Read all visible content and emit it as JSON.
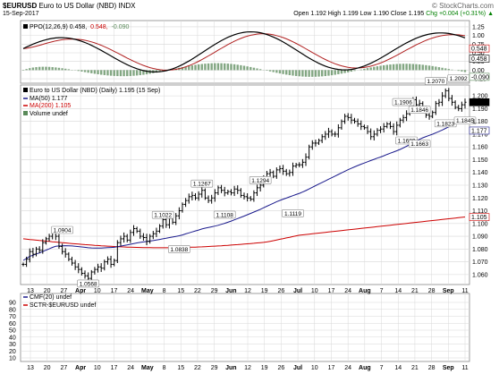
{
  "header": {
    "symbol": "$EURUSD",
    "name": "Euro to US Dollar (NBD)",
    "exchange": "INDX",
    "date": "15-Sep-2017",
    "watermark": "© StockCharts.com",
    "open": "Open 1.192",
    "high": "High 1.199",
    "low": "Low 1.190",
    "close": "Close 1.195",
    "change": "Chg +0.004 (+0.31%) ▲"
  },
  "ppo_panel": {
    "legend": "PPO(12,26,9) 0.458, 0.548, -0.090",
    "ppo_label": "PPO(12,26,9) 0.458,",
    "signal_label": "0.548,",
    "hist_label": "-0.090",
    "y_ticks": [
      "1.25",
      "1.00",
      "0.75",
      "0.50",
      "0.25",
      "0.00",
      "-0.25"
    ],
    "end_tags": [
      "0.548",
      "0.458",
      "-0.090"
    ]
  },
  "price_panel": {
    "legend_price": "Euro to US Dollar (NBD) (Daily) 1.195 (15 Sep)",
    "legend_ma50": "MA(50) 1.177",
    "legend_ma200": "MA(200) 1.105",
    "legend_volume": "Volume undef",
    "y_ticks": [
      "1.200",
      "1.190",
      "1.180",
      "1.170",
      "1.160",
      "1.150",
      "1.140",
      "1.130",
      "1.120",
      "1.110",
      "1.100",
      "1.090",
      "1.080",
      "1.070",
      "1.060"
    ],
    "end_tags": [
      "1.195",
      "1.177",
      "1.105"
    ]
  },
  "cmf_panel": {
    "legend_cmf": "CMF(20) undef",
    "legend_sctr": "SCTR-$EURUSD undef",
    "y_ticks": [
      "90",
      "80",
      "70",
      "60",
      "50",
      "40",
      "30",
      "20",
      "10"
    ]
  },
  "x_axis": {
    "labels": [
      "13",
      "20",
      "27",
      "Apr",
      "10",
      "17",
      "24",
      "May",
      "8",
      "15",
      "22",
      "29",
      "Jun",
      "12",
      "19",
      "26",
      "Jul",
      "10",
      "17",
      "24",
      "Aug",
      "7",
      "14",
      "21",
      "28",
      "Sep",
      "11"
    ],
    "month_labels": [
      "Apr",
      "May",
      "Jun",
      "Jul",
      "Aug",
      "Sep"
    ]
  },
  "colors": {
    "price": "#000000",
    "ma50": "#1a1a8c",
    "ma200": "#cc0000",
    "ppo": "#000000",
    "signal": "#b02020",
    "histogram": "#5a8a5a",
    "grid": "#d8d8d8",
    "panel_bg": "#ffffff",
    "outer_bg": "#e8e8e8",
    "legend_box": "#222222"
  },
  "chart_data": {
    "type": "ohlc",
    "title": "$EURUSD Euro to US Dollar (NBD) INDX",
    "ylim": [
      1.055,
      1.205
    ],
    "close": [
      1.068,
      1.072,
      1.078,
      1.076,
      1.08,
      1.079,
      1.085,
      1.088,
      1.09,
      1.094,
      1.09,
      1.082,
      1.078,
      1.076,
      1.072,
      1.069,
      1.066,
      1.064,
      1.061,
      1.059,
      1.057,
      1.062,
      1.064,
      1.066,
      1.065,
      1.07,
      1.072,
      1.068,
      1.071,
      1.085,
      1.088,
      1.09,
      1.087,
      1.093,
      1.096,
      1.094,
      1.09,
      1.089,
      1.086,
      1.09,
      1.092,
      1.094,
      1.098,
      1.103,
      1.099,
      1.104,
      1.101,
      1.106,
      1.11,
      1.115,
      1.118,
      1.121,
      1.122,
      1.12,
      1.123,
      1.126,
      1.12,
      1.118,
      1.12,
      1.124,
      1.128,
      1.126,
      1.124,
      1.125,
      1.124,
      1.127,
      1.126,
      1.122,
      1.121,
      1.12,
      1.119,
      1.124,
      1.128,
      1.13,
      1.136,
      1.139,
      1.14,
      1.137,
      1.142,
      1.143,
      1.141,
      1.139,
      1.14,
      1.145,
      1.146,
      1.146,
      1.148,
      1.152,
      1.16,
      1.163,
      1.163,
      1.165,
      1.168,
      1.17,
      1.172,
      1.17,
      1.17,
      1.175,
      1.18,
      1.184,
      1.183,
      1.181,
      1.18,
      1.178,
      1.176,
      1.175,
      1.172,
      1.168,
      1.17,
      1.173,
      1.174,
      1.176,
      1.178,
      1.176,
      1.172,
      1.177,
      1.181,
      1.183,
      1.186,
      1.19,
      1.197,
      1.193,
      1.194,
      1.19,
      1.185,
      1.184,
      1.187,
      1.194,
      1.195,
      1.2,
      1.204,
      1.198,
      1.195,
      1.191,
      1.19,
      1.193,
      1.195
    ],
    "ma50_end": 1.177,
    "ma200_end": 1.105,
    "annotations": [
      {
        "label": "1.0904",
        "i": 12,
        "pos": "above"
      },
      {
        "label": "1.0568",
        "i": 20,
        "pos": "below"
      },
      {
        "label": "1.1022",
        "i": 43,
        "pos": "above"
      },
      {
        "label": "1.0838",
        "i": 48,
        "pos": "below"
      },
      {
        "label": "1.1267",
        "i": 55,
        "pos": "above"
      },
      {
        "label": "1.1108",
        "i": 62,
        "pos": "below"
      },
      {
        "label": "1.1294",
        "i": 73,
        "pos": "above"
      },
      {
        "label": "1.1119",
        "i": 83,
        "pos": "below"
      },
      {
        "label": "1.1906",
        "i": 117,
        "pos": "above"
      },
      {
        "label": "1.1846",
        "i": 122,
        "pos": "above"
      },
      {
        "label": "1.1689",
        "i": 118,
        "pos": "below"
      },
      {
        "label": "1.1663",
        "i": 122,
        "pos": "below"
      },
      {
        "label": "1.2070",
        "i": 127,
        "pos": "above"
      },
      {
        "label": "1.1823",
        "i": 130,
        "pos": "below"
      },
      {
        "label": "1.2092",
        "i": 134,
        "pos": "above"
      },
      {
        "label": "1.1845",
        "i": 136,
        "pos": "below"
      }
    ]
  }
}
